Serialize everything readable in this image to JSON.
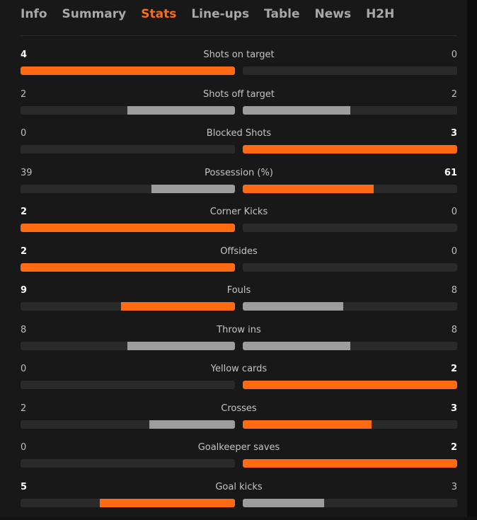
{
  "tabs": [
    {
      "label": "Info",
      "active": false
    },
    {
      "label": "Summary",
      "active": false
    },
    {
      "label": "Stats",
      "active": true
    },
    {
      "label": "Line-ups",
      "active": false
    },
    {
      "label": "Table",
      "active": false
    },
    {
      "label": "News",
      "active": false
    },
    {
      "label": "H2H",
      "active": false
    }
  ],
  "colors": {
    "accent": "#ff6a13",
    "bar_neutral": "#9d9d9d",
    "track": "#2a2a2a",
    "background": "#181818"
  },
  "stats": [
    {
      "label": "Shots on target",
      "home": "4",
      "away": "0",
      "home_fill": 1.0,
      "away_fill": 0.0
    },
    {
      "label": "Shots off target",
      "home": "2",
      "away": "2",
      "home_fill": 0.5,
      "away_fill": 0.5
    },
    {
      "label": "Blocked Shots",
      "home": "0",
      "away": "3",
      "home_fill": 0.0,
      "away_fill": 1.0
    },
    {
      "label": "Possession (%)",
      "home": "39",
      "away": "61",
      "home_fill": 0.39,
      "away_fill": 0.61
    },
    {
      "label": "Corner Kicks",
      "home": "2",
      "away": "0",
      "home_fill": 1.0,
      "away_fill": 0.0
    },
    {
      "label": "Offsides",
      "home": "2",
      "away": "0",
      "home_fill": 1.0,
      "away_fill": 0.0
    },
    {
      "label": "Fouls",
      "home": "9",
      "away": "8",
      "home_fill": 0.53,
      "away_fill": 0.47
    },
    {
      "label": "Throw ins",
      "home": "8",
      "away": "8",
      "home_fill": 0.5,
      "away_fill": 0.5
    },
    {
      "label": "Yellow cards",
      "home": "0",
      "away": "2",
      "home_fill": 0.0,
      "away_fill": 1.0
    },
    {
      "label": "Crosses",
      "home": "2",
      "away": "3",
      "home_fill": 0.4,
      "away_fill": 0.6
    },
    {
      "label": "Goalkeeper saves",
      "home": "0",
      "away": "2",
      "home_fill": 0.0,
      "away_fill": 1.0
    },
    {
      "label": "Goal kicks",
      "home": "5",
      "away": "3",
      "home_fill": 0.63,
      "away_fill": 0.38
    }
  ]
}
